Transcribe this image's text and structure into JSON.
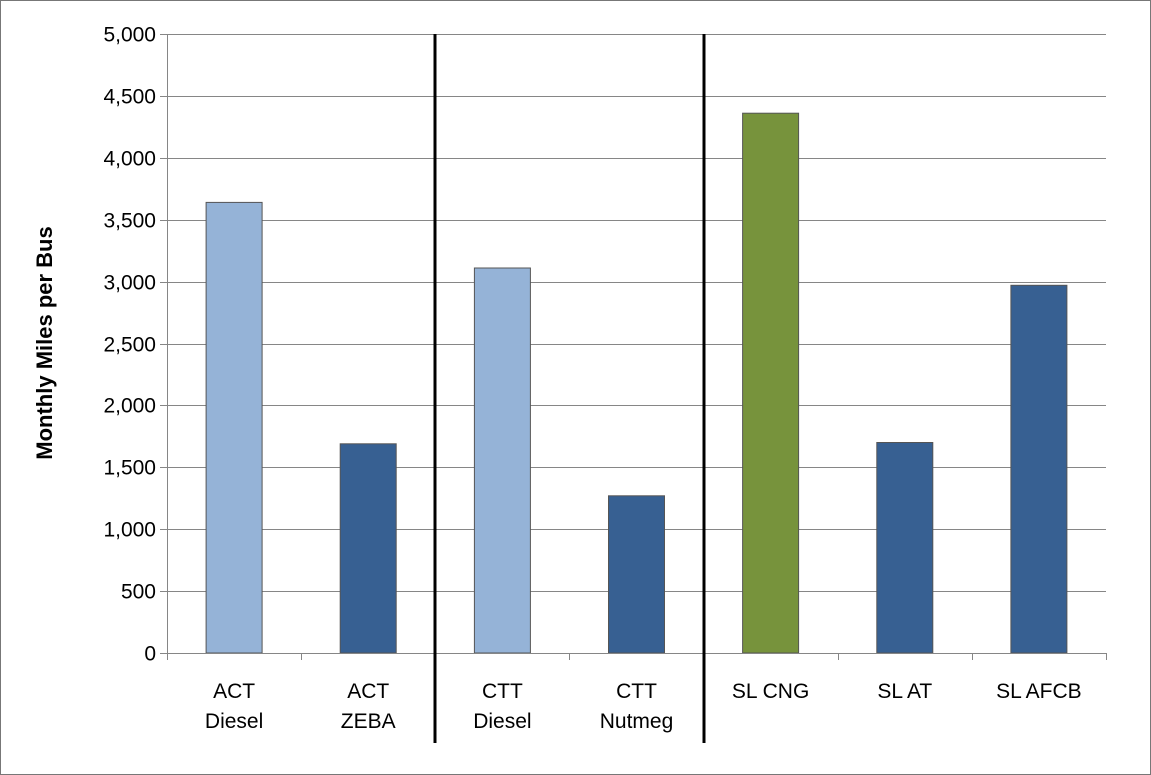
{
  "chart_data": {
    "type": "bar",
    "title": "",
    "xlabel": "",
    "ylabel": "Monthly Miles per Bus",
    "ylim": [
      0,
      5000
    ],
    "yticks": [
      0,
      500,
      1000,
      1500,
      2000,
      2500,
      3000,
      3500,
      4000,
      4500,
      5000
    ],
    "ytick_labels": [
      "0",
      "500",
      "1,000",
      "1,500",
      "2,000",
      "2,500",
      "3,000",
      "3,500",
      "4,000",
      "4,500",
      "5,000"
    ],
    "grid": "horizontal",
    "legend": "none",
    "groups": [
      "ACT",
      "CTT",
      "SL"
    ],
    "categories": [
      {
        "lines": [
          "ACT",
          "Diesel"
        ],
        "group": "ACT"
      },
      {
        "lines": [
          "ACT",
          "ZEBA"
        ],
        "group": "ACT"
      },
      {
        "lines": [
          "CTT",
          "Diesel"
        ],
        "group": "CTT"
      },
      {
        "lines": [
          "CTT",
          "Nutmeg"
        ],
        "group": "CTT"
      },
      {
        "lines": [
          "SL CNG"
        ],
        "group": "SL"
      },
      {
        "lines": [
          "SL AT"
        ],
        "group": "SL"
      },
      {
        "lines": [
          "SL AFCB"
        ],
        "group": "SL"
      }
    ],
    "values": [
      3640,
      1690,
      3110,
      1270,
      4360,
      1700,
      2970
    ],
    "bar_colors": [
      "#95B3D7",
      "#376092",
      "#95B3D7",
      "#376092",
      "#77933C",
      "#376092",
      "#376092"
    ]
  }
}
